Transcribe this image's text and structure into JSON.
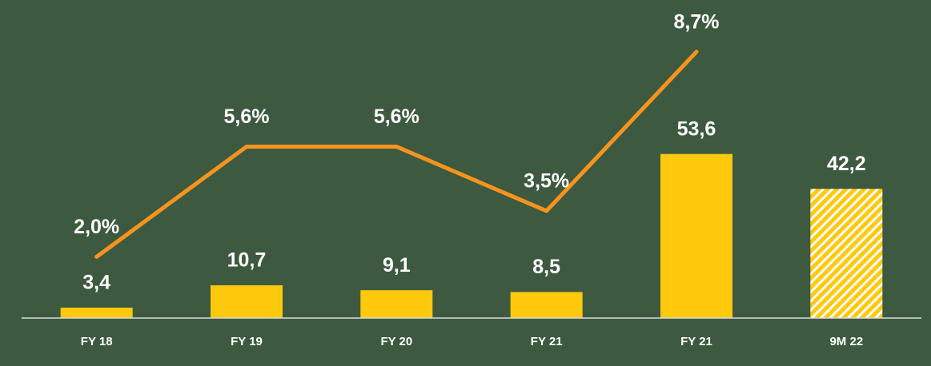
{
  "chart_data": {
    "type": "bar_line",
    "categories": [
      "FY 18",
      "FY 19",
      "FY 20",
      "FY 21",
      "FY 21",
      "9M 22"
    ],
    "series": [
      {
        "name": null,
        "type": "bar",
        "color": "#ffc90e",
        "values": [
          3.4,
          10.7,
          9.1,
          8.5,
          53.6,
          42.2
        ],
        "value_labels": [
          "3,4",
          "10,7",
          "9,1",
          "8,5",
          "53,6",
          "42,2"
        ],
        "patterns": [
          "solid",
          "solid",
          "solid",
          "solid",
          "solid",
          "hatched"
        ]
      },
      {
        "name": null,
        "type": "line",
        "axis": "y2",
        "color": "#f7941d",
        "values": [
          2.0,
          5.6,
          5.6,
          3.5,
          8.7,
          null
        ],
        "value_labels": [
          "2,0%",
          "5,6%",
          "5,6%",
          "3,5%",
          "8,7%",
          null
        ]
      }
    ],
    "ylim": [
      0,
      100
    ],
    "y2lim": [
      0,
      10
    ]
  }
}
